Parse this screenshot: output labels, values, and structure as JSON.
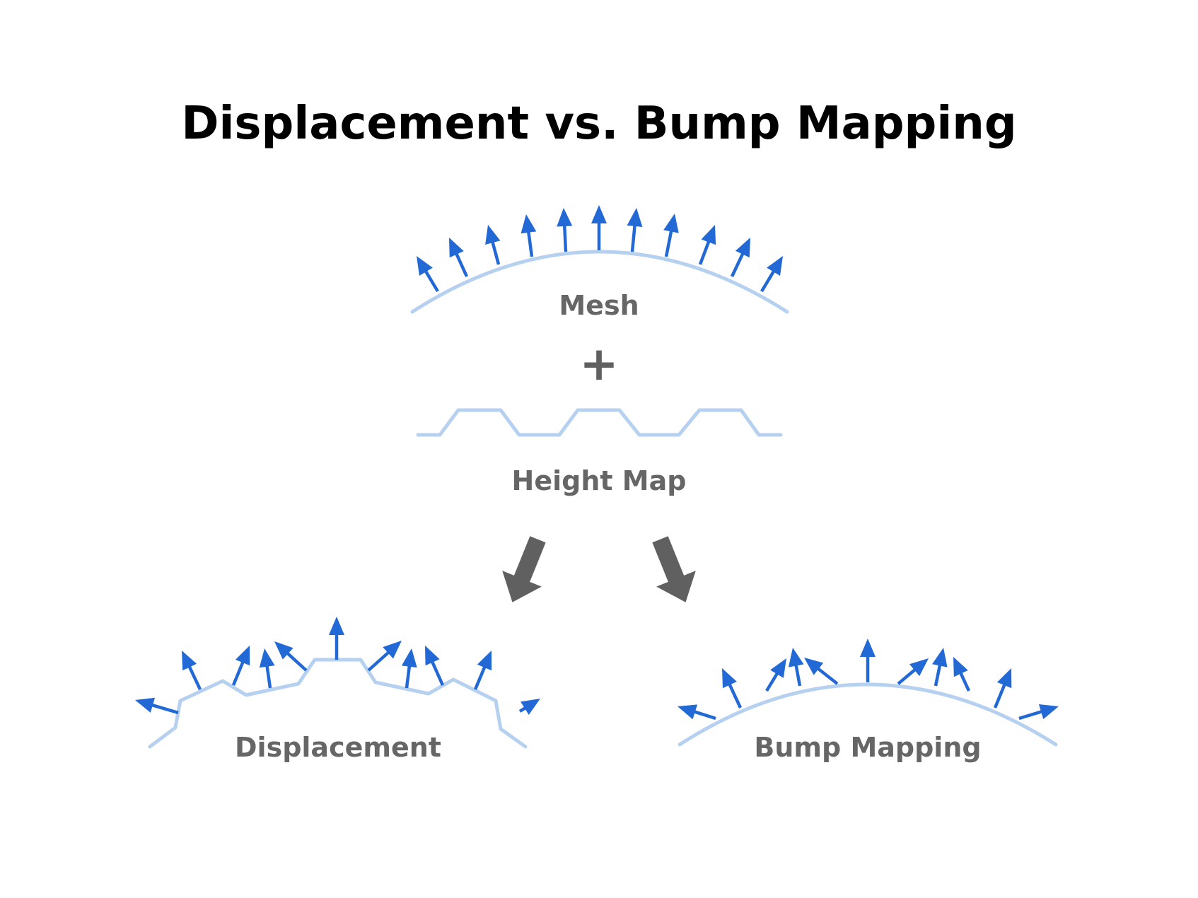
{
  "title": "Displacement vs. Bump Mapping",
  "labels": {
    "mesh": "Mesh",
    "operator": "+",
    "height_map": "Height Map",
    "displacement": "Displacement",
    "bump_mapping": "Bump Mapping"
  },
  "colors": {
    "title": "#000000",
    "label": "#666666",
    "surface": "#b6d0f0",
    "normal_arrow": "#2369d6",
    "flow_arrow": "#606060",
    "background": "#ffffff"
  },
  "icons": {
    "normal": "arrow-up-icon",
    "flow_left": "arrow-down-left-icon",
    "flow_right": "arrow-down-right-icon"
  }
}
